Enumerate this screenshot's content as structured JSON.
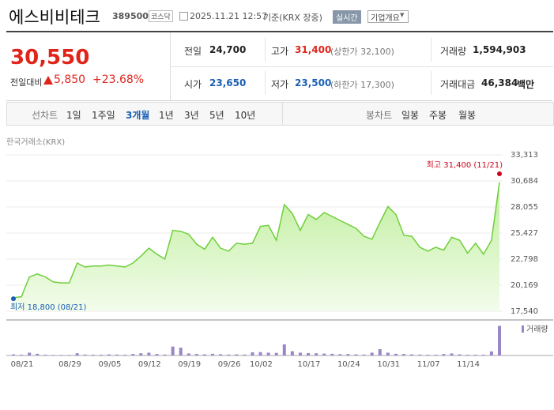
{
  "header": {
    "title": "에스비비테크",
    "code": "389500",
    "market": "코스닥",
    "datetime": "2025.11.21 12:57",
    "basis": "기준(KRX 장중)",
    "realtime_button": "실시간",
    "overview_button": "기업개요"
  },
  "quote": {
    "price": "30,550",
    "change_label": "전일대비",
    "change": "5,850",
    "change_rate": "+23.68%"
  },
  "stats": [
    {
      "label": "전일",
      "value": "24,700"
    },
    {
      "label": "고가",
      "value": "31,400",
      "note": "(상한가 32,100)"
    },
    {
      "label": "거래량",
      "value": "1,594,903"
    },
    {
      "label": "시가",
      "value": "23,650"
    },
    {
      "label": "저가",
      "value": "23,500",
      "note": "(하한가 17,300)"
    },
    {
      "label": "거래대금",
      "value": "46,384",
      "unit": "백만"
    }
  ],
  "tabs": {
    "line_chart_label": "선차트",
    "periods": [
      "1일",
      "1주일",
      "3개월",
      "1년",
      "3년",
      "5년",
      "10년"
    ],
    "selected": 2,
    "candle_label": "봉차트",
    "candle_periods": [
      "일봉",
      "주봉",
      "월봉"
    ]
  },
  "source": "한국거래소(KRX)",
  "chart_data": [
    {
      "type": "area",
      "color": "#6fcf3a",
      "values": [
        18900,
        19000,
        21000,
        21300,
        21000,
        20500,
        20400,
        20400,
        22400,
        22000,
        22100,
        22100,
        22200,
        22100,
        22000,
        22400,
        23100,
        23900,
        23300,
        22800,
        25700,
        25600,
        25300,
        24300,
        23800,
        25000,
        23900,
        23600,
        24400,
        24300,
        24400,
        26100,
        26200,
        24700,
        28300,
        27400,
        25700,
        27300,
        26800,
        27500,
        27100,
        26700,
        26300,
        25900,
        25100,
        24800,
        26500,
        28100,
        27300,
        25200,
        25100,
        24000,
        23600,
        24000,
        23700,
        25000,
        24700,
        23400,
        24400,
        23300,
        24700,
        30550
      ],
      "ylim": [
        17540,
        33313
      ],
      "yticks": [
        {
          "value": 17540,
          "label": "17,540"
        },
        {
          "value": 20169,
          "label": "20,169"
        },
        {
          "value": 22798,
          "label": "22,798"
        },
        {
          "value": 25427,
          "label": "25,427"
        },
        {
          "value": 28055,
          "label": "28,055"
        },
        {
          "value": 30684,
          "label": "30,684"
        },
        {
          "value": 33313,
          "label": "33,313"
        }
      ],
      "grid": true,
      "annotations": [
        {
          "text": "최고 31,400 (11/21)",
          "value": 31400,
          "color": "#d0021b"
        },
        {
          "text": "최저 18,800 (08/21)",
          "value": 18800,
          "color": "#1a5fb4"
        }
      ]
    },
    {
      "type": "bar",
      "categories": [
        "08/21",
        null,
        null,
        null,
        null,
        null,
        "08/29",
        null,
        null,
        null,
        null,
        "09/05",
        null,
        null,
        null,
        null,
        "09/12",
        null,
        null,
        null,
        null,
        "09/19",
        null,
        null,
        null,
        null,
        "09/26",
        null,
        null,
        null,
        "10/02",
        null,
        null,
        null,
        null,
        null,
        "10/17",
        null,
        null,
        null,
        null,
        "10/24",
        null,
        null,
        null,
        null,
        "10/31",
        null,
        null,
        null,
        null,
        "11/07",
        null,
        null,
        null,
        null,
        "11/14",
        null,
        null,
        null,
        null,
        null
      ],
      "series": [
        {
          "name": "거래량",
          "color": "#9a86c6",
          "values": [
            60000,
            40000,
            150000,
            90000,
            40000,
            30000,
            30000,
            30000,
            120000,
            50000,
            40000,
            40000,
            60000,
            50000,
            40000,
            80000,
            120000,
            150000,
            80000,
            50000,
            480000,
            420000,
            110000,
            80000,
            60000,
            90000,
            70000,
            50000,
            60000,
            50000,
            170000,
            180000,
            150000,
            140000,
            600000,
            230000,
            150000,
            130000,
            120000,
            100000,
            90000,
            70000,
            80000,
            60000,
            50000,
            150000,
            340000,
            150000,
            90000,
            80000,
            60000,
            50000,
            40000,
            40000,
            80000,
            110000,
            60000,
            40000,
            40000,
            40000,
            220000,
            1594903
          ]
        }
      ],
      "ylim": [
        0,
        1700000
      ]
    }
  ]
}
